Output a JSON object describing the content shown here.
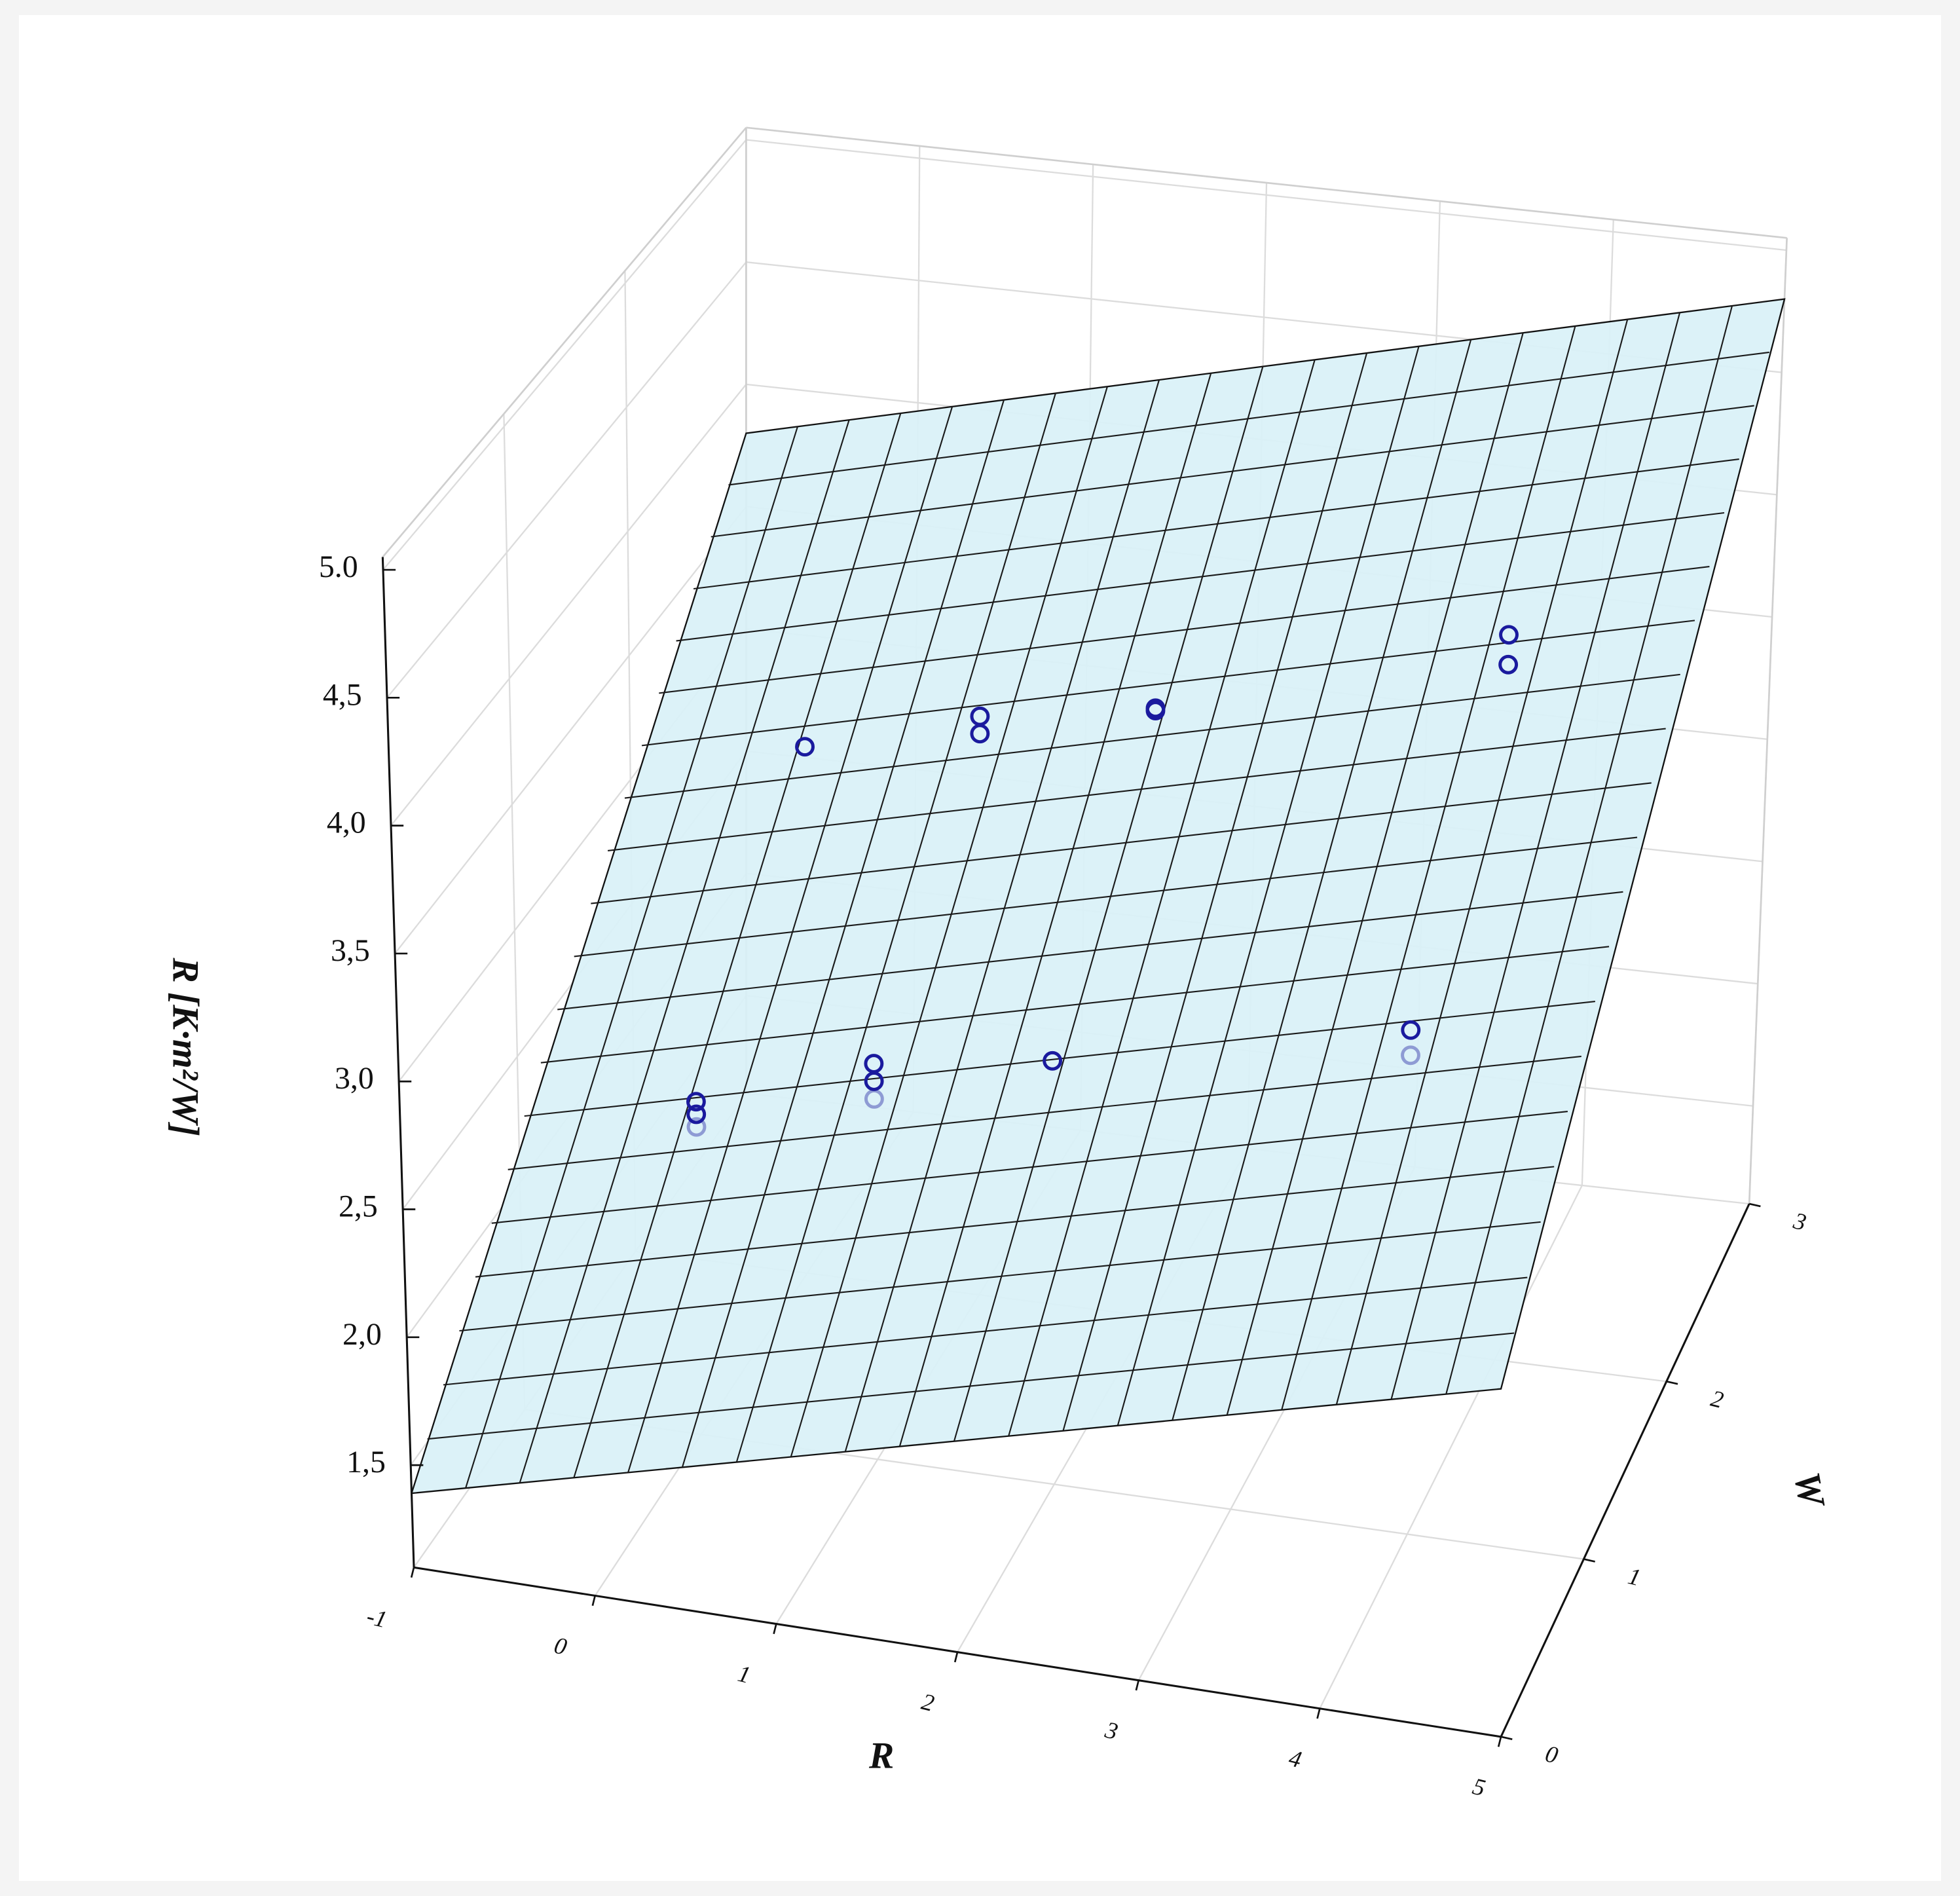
{
  "chart_data": {
    "type": "surface",
    "xlabel": "R",
    "ylabel": "W",
    "zlabel": "R [K·m²/W]",
    "xlim": [
      -1,
      5
    ],
    "xticks": [
      -1,
      0,
      1,
      2,
      3,
      4,
      5
    ],
    "ylim": [
      0,
      3
    ],
    "yticks": [
      0,
      1,
      2,
      3
    ],
    "zlim": [
      1.1,
      5.05
    ],
    "zticks": [
      {
        "value": 1.5,
        "label": "1,5"
      },
      {
        "value": 2.0,
        "label": "2,0"
      },
      {
        "value": 2.5,
        "label": "2,5"
      },
      {
        "value": 3.0,
        "label": "3,0"
      },
      {
        "value": 3.5,
        "label": "3,5"
      },
      {
        "value": 4.0,
        "label": "4,0"
      },
      {
        "value": 4.5,
        "label": "4,5"
      },
      {
        "value": 5.0,
        "label": "5.0"
      }
    ],
    "grid": true,
    "surface": {
      "color": "#d9f1f7",
      "z": [
        [
          1.39,
          2.46
        ],
        [
          3.8,
          4.8
        ]
      ]
    },
    "points": {
      "color": "#1a1a9e",
      "x": [
        0,
        0,
        0,
        1,
        1,
        1,
        2,
        4,
        4,
        0,
        1,
        1,
        2,
        2,
        4,
        4
      ],
      "y": [
        1,
        1,
        1,
        1,
        1,
        1,
        1,
        1,
        1,
        2,
        2,
        2,
        2,
        2,
        2,
        2
      ],
      "z": [
        2.42,
        2.37,
        2.32,
        2.67,
        2.6,
        2.53,
        2.78,
        3.1,
        3.0,
        3.22,
        3.43,
        3.36,
        3.55,
        3.54,
        4.02,
        3.9
      ]
    }
  }
}
